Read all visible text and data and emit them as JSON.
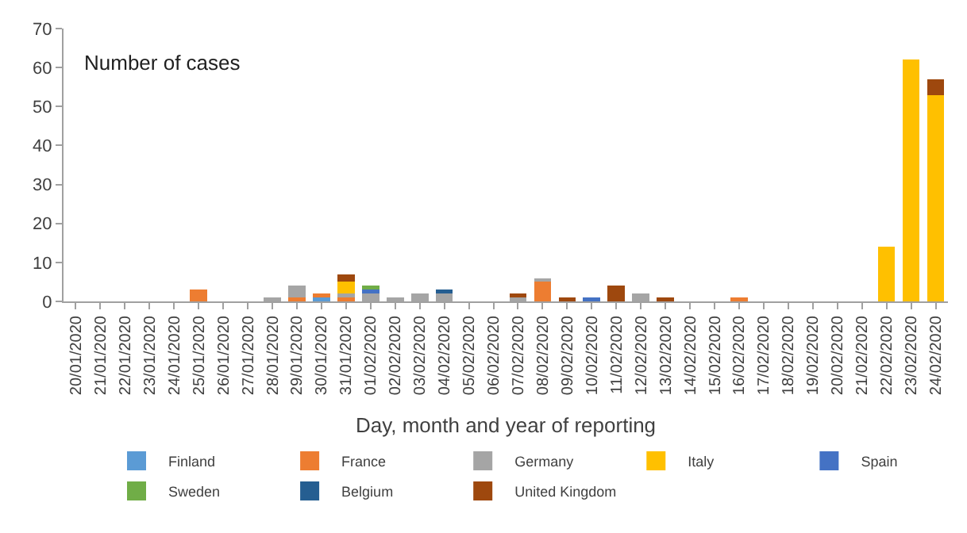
{
  "chart_data": {
    "type": "bar",
    "stacked": true,
    "xlabel": "Day, month and year of reporting",
    "annotations": [
      "Number of cases"
    ],
    "categories": [
      "20/01/2020",
      "21/01/2020",
      "22/01/2020",
      "23/01/2020",
      "24/01/2020",
      "25/01/2020",
      "26/01/2020",
      "27/01/2020",
      "28/01/2020",
      "29/01/2020",
      "30/01/2020",
      "31/01/2020",
      "01/02/2020",
      "02/02/2020",
      "03/02/2020",
      "04/02/2020",
      "05/02/2020",
      "06/02/2020",
      "07/02/2020",
      "08/02/2020",
      "09/02/2020",
      "10/02/2020",
      "11/02/2020",
      "12/02/2020",
      "13/02/2020",
      "14/02/2020",
      "15/02/2020",
      "16/02/2020",
      "17/02/2020",
      "18/02/2020",
      "19/02/2020",
      "20/02/2020",
      "21/02/2020",
      "22/02/2020",
      "23/02/2020",
      "24/02/2020"
    ],
    "series": [
      {
        "name": "Finland",
        "color": "#5b9bd5",
        "values": [
          0,
          0,
          0,
          0,
          0,
          0,
          0,
          0,
          0,
          0,
          1,
          0,
          0,
          0,
          0,
          0,
          0,
          0,
          0,
          0,
          0,
          0,
          0,
          0,
          0,
          0,
          0,
          0,
          0,
          0,
          0,
          0,
          0,
          0,
          0,
          0
        ]
      },
      {
        "name": "France",
        "color": "#ed7d31",
        "values": [
          0,
          0,
          0,
          0,
          0,
          3,
          0,
          0,
          0,
          1,
          1,
          1,
          0,
          0,
          0,
          0,
          0,
          0,
          0,
          5,
          0,
          0,
          0,
          0,
          0,
          0,
          0,
          1,
          0,
          0,
          0,
          0,
          0,
          0,
          0,
          0
        ]
      },
      {
        "name": "Germany",
        "color": "#a5a5a5",
        "values": [
          0,
          0,
          0,
          0,
          0,
          0,
          0,
          0,
          1,
          3,
          0,
          1,
          2,
          1,
          2,
          2,
          0,
          0,
          1,
          1,
          0,
          0,
          0,
          2,
          0,
          0,
          0,
          0,
          0,
          0,
          0,
          0,
          0,
          0,
          0,
          0
        ]
      },
      {
        "name": "Italy",
        "color": "#ffc000",
        "values": [
          0,
          0,
          0,
          0,
          0,
          0,
          0,
          0,
          0,
          0,
          0,
          3,
          0,
          0,
          0,
          0,
          0,
          0,
          0,
          0,
          0,
          0,
          0,
          0,
          0,
          0,
          0,
          0,
          0,
          0,
          0,
          0,
          0,
          14,
          62,
          53
        ]
      },
      {
        "name": "Spain",
        "color": "#4472c4",
        "values": [
          0,
          0,
          0,
          0,
          0,
          0,
          0,
          0,
          0,
          0,
          0,
          0,
          1,
          0,
          0,
          0,
          0,
          0,
          0,
          0,
          0,
          1,
          0,
          0,
          0,
          0,
          0,
          0,
          0,
          0,
          0,
          0,
          0,
          0,
          0,
          0
        ]
      },
      {
        "name": "Sweden",
        "color": "#70ad47",
        "values": [
          0,
          0,
          0,
          0,
          0,
          0,
          0,
          0,
          0,
          0,
          0,
          0,
          1,
          0,
          0,
          0,
          0,
          0,
          0,
          0,
          0,
          0,
          0,
          0,
          0,
          0,
          0,
          0,
          0,
          0,
          0,
          0,
          0,
          0,
          0,
          0
        ]
      },
      {
        "name": "Belgium",
        "color": "#255e91",
        "values": [
          0,
          0,
          0,
          0,
          0,
          0,
          0,
          0,
          0,
          0,
          0,
          0,
          0,
          0,
          0,
          1,
          0,
          0,
          0,
          0,
          0,
          0,
          0,
          0,
          0,
          0,
          0,
          0,
          0,
          0,
          0,
          0,
          0,
          0,
          0,
          0
        ]
      },
      {
        "name": "United Kingdom",
        "color": "#9e480e",
        "values": [
          0,
          0,
          0,
          0,
          0,
          0,
          0,
          0,
          0,
          0,
          0,
          2,
          0,
          0,
          0,
          0,
          0,
          0,
          1,
          0,
          1,
          0,
          4,
          0,
          1,
          0,
          0,
          0,
          0,
          0,
          0,
          0,
          0,
          0,
          0,
          4
        ]
      }
    ],
    "ylim": [
      0,
      70
    ],
    "yticks": [
      0,
      10,
      20,
      30,
      40,
      50,
      60,
      70
    ],
    "legend": "bottom"
  }
}
